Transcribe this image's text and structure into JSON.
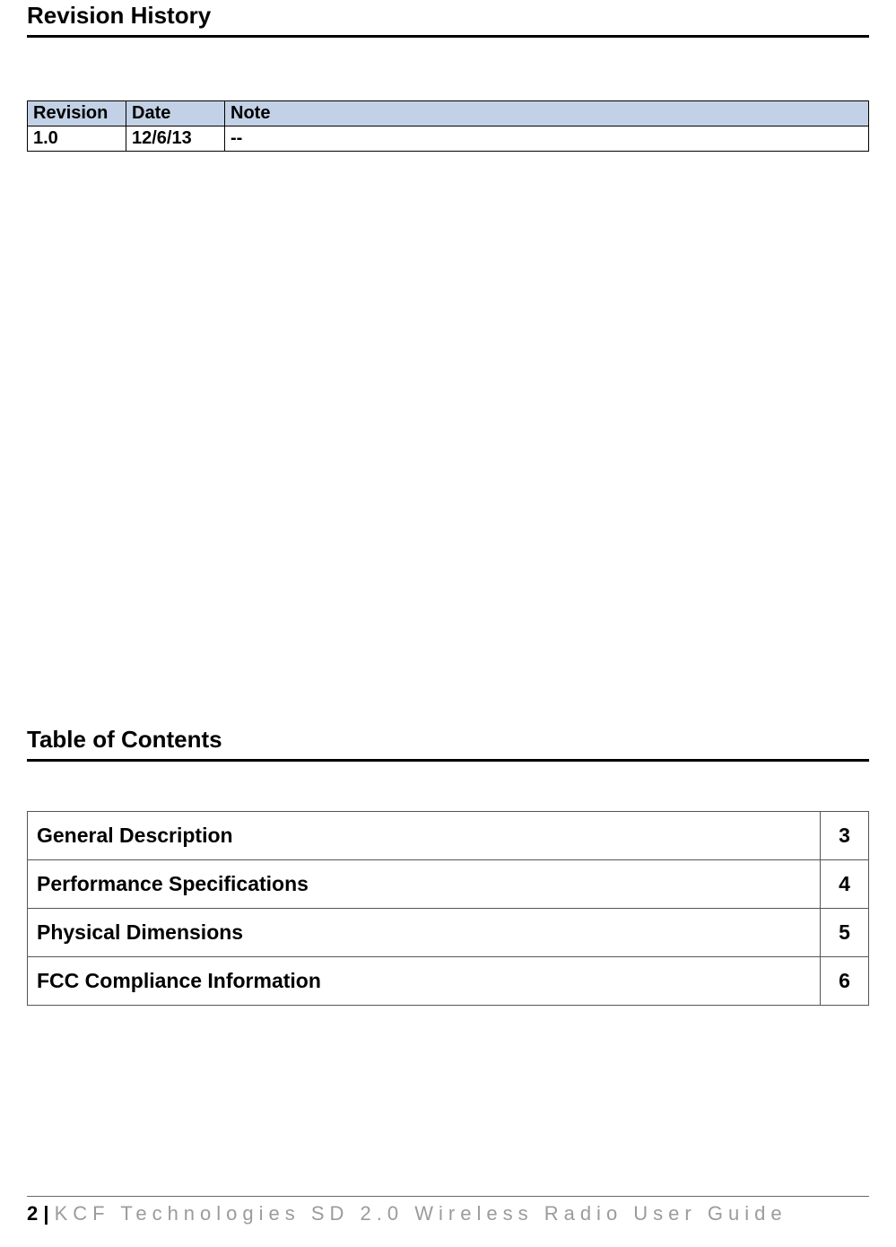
{
  "sections": {
    "revision_title": "Revision History",
    "toc_title": "Table of Contents"
  },
  "revision_table": {
    "headers": {
      "rev": "Revision",
      "date": "Date",
      "note": "Note"
    },
    "header_bg": "#c2d1e5",
    "rows": [
      {
        "rev": "1.0",
        "date": "12/6/13",
        "note": "--"
      }
    ]
  },
  "toc": [
    {
      "title": "General Description",
      "page": "3"
    },
    {
      "title": "Performance Specifications",
      "page": "4"
    },
    {
      "title": "Physical Dimensions",
      "page": "5"
    },
    {
      "title": "FCC Compliance Information",
      "page": "6"
    }
  ],
  "footer": {
    "page_number": "2 | ",
    "text": "KCF Technologies SD 2.0 Wireless Radio User Guide"
  }
}
